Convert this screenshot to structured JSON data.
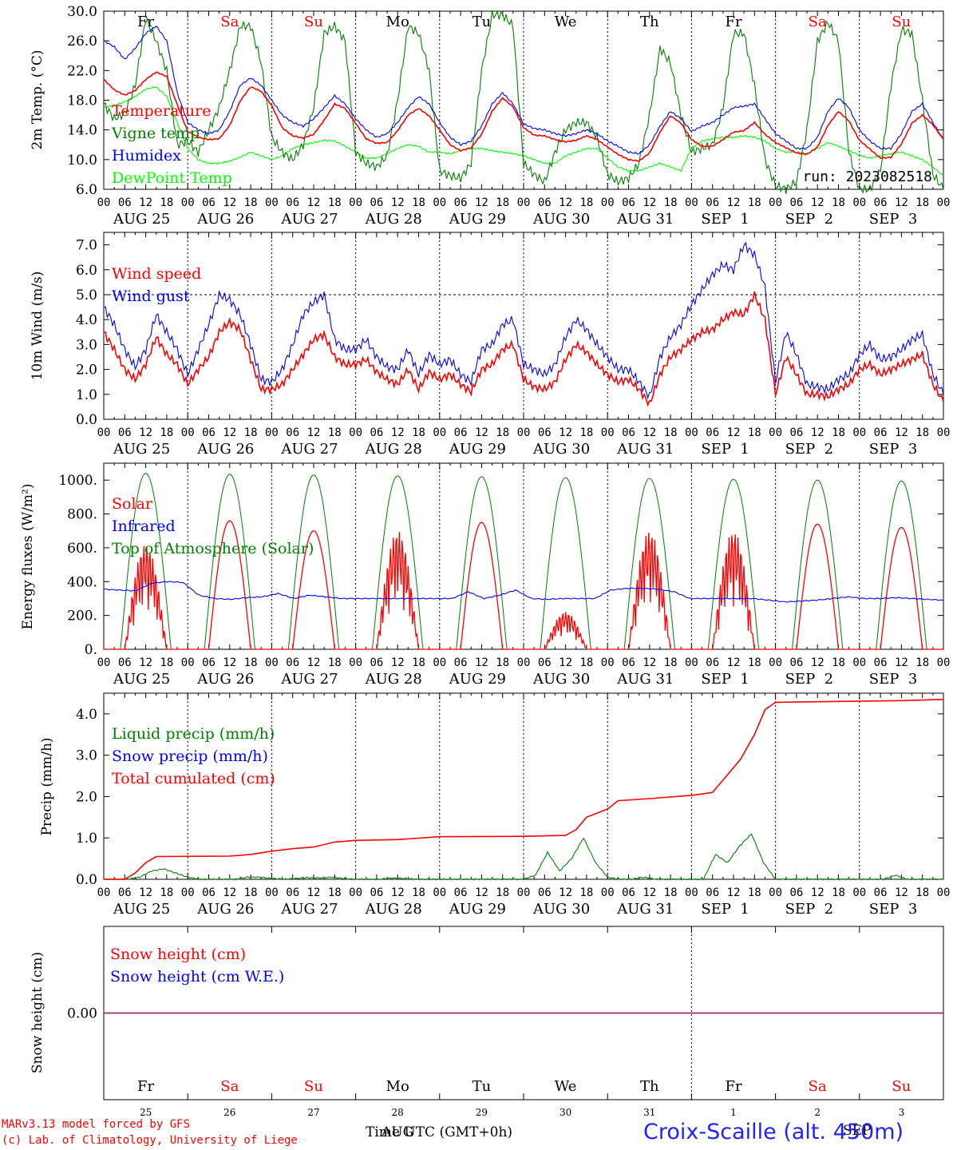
{
  "chart_data": [
    {
      "type": "line",
      "ylabel": "2m Temp. (°C)",
      "ylim": [
        6,
        30
      ],
      "yticks": [
        "6.0",
        "10.0",
        "14.0",
        "18.0",
        "22.0",
        "26.0",
        "30.0"
      ],
      "grid": "vertical-dotted-midnight",
      "legend_placement": "left",
      "annotation": "run: 2023082518",
      "series": [
        {
          "name": "Temperature",
          "color": "#ff0000",
          "values": [
            20.8,
            19.4,
            18.7,
            19.3,
            20.8,
            21.8,
            21.2,
            17.4,
            13.8,
            13.0,
            12.7,
            12.8,
            14.6,
            17.9,
            19.8,
            19.2,
            17.3,
            14.3,
            13.2,
            12.9,
            13.4,
            15.3,
            17.5,
            16.9,
            14.9,
            12.8,
            12.2,
            12.3,
            13.9,
            16.0,
            16.9,
            15.9,
            14.0,
            12.0,
            11.2,
            11.6,
            13.4,
            16.5,
            18.3,
            17.1,
            14.3,
            13.3,
            13.2,
            12.7,
            12.4,
            12.6,
            13.2,
            12.7,
            11.7,
            10.7,
            10.0,
            9.8,
            10.9,
            13.7,
            15.9,
            14.9,
            12.7,
            11.8,
            11.8,
            12.7,
            13.7,
            13.9,
            15.0,
            13.4,
            12.3,
            11.6,
            10.9,
            10.7,
            11.7,
            14.6,
            16.5,
            15.2,
            12.6,
            11.4,
            10.2,
            10.3,
            12.1,
            14.9,
            16.0,
            14.7,
            12.7
          ]
        },
        {
          "name": "Vigne temp",
          "color": "#008000",
          "values": [
            17.5,
            15.5,
            16.2,
            20.0,
            29.0,
            26.0,
            22.0,
            12.0,
            12.5,
            11.0,
            14.0,
            17.0,
            22.0,
            28.0,
            28.0,
            23.0,
            13.0,
            11.0,
            10.0,
            12.0,
            17.0,
            27.0,
            28.0,
            26.0,
            11.0,
            9.5,
            9.0,
            10.5,
            18.0,
            28.0,
            27.0,
            22.0,
            8.5,
            7.8,
            7.5,
            9.5,
            22.0,
            29.5,
            29.5,
            28.0,
            9.5,
            8.0,
            7.0,
            11.0,
            14.0,
            15.0,
            15.0,
            13.0,
            8.0,
            7.0,
            7.5,
            9.5,
            16.0,
            25.0,
            23.0,
            16.0,
            11.0,
            11.5,
            12.0,
            17.0,
            27.0,
            27.0,
            20.0,
            10.0,
            6.5,
            6.0,
            7.0,
            14.0,
            26.0,
            28.5,
            26.0,
            11.0,
            6.0,
            6.0,
            8.5,
            20.0,
            27.5,
            27.0,
            18.0,
            8.0,
            6.0
          ]
        },
        {
          "name": "Humidex",
          "color": "#0000ff",
          "values": [
            26.0,
            25.2,
            23.5,
            25.0,
            27.0,
            28.0,
            26.0,
            19.0,
            15.0,
            14.0,
            13.5,
            14.0,
            16.5,
            20.0,
            21.0,
            20.0,
            18.0,
            16.0,
            15.0,
            14.5,
            15.5,
            17.0,
            18.6,
            17.5,
            15.5,
            14.0,
            13.0,
            13.5,
            15.0,
            17.0,
            18.5,
            17.5,
            15.0,
            13.0,
            12.0,
            12.5,
            14.5,
            17.5,
            19.0,
            17.5,
            14.8,
            14.2,
            14.0,
            13.5,
            13.2,
            13.5,
            14.0,
            13.5,
            12.5,
            11.8,
            11.0,
            10.8,
            12.0,
            14.5,
            16.5,
            15.5,
            13.8,
            14.5,
            15.0,
            16.0,
            17.0,
            17.2,
            17.5,
            15.5,
            13.5,
            12.5,
            11.5,
            11.5,
            13.0,
            16.5,
            18.3,
            17.0,
            14.0,
            12.5,
            11.5,
            11.5,
            13.5,
            16.5,
            17.5,
            15.0,
            12.7
          ]
        },
        {
          "name": "DewPoint Temp",
          "color": "#00ff00",
          "values": [
            17.0,
            17.3,
            17.8,
            18.5,
            19.5,
            19.8,
            18.5,
            15.0,
            11.5,
            10.0,
            9.5,
            9.5,
            9.8,
            10.3,
            11.0,
            10.5,
            10.0,
            10.5,
            11.5,
            12.0,
            12.3,
            12.6,
            12.5,
            11.8,
            11.0,
            10.2,
            10.2,
            10.8,
            11.5,
            12.0,
            11.8,
            11.0,
            11.0,
            10.8,
            11.2,
            11.5,
            11.5,
            11.2,
            11.0,
            10.8,
            10.5,
            10.0,
            9.5,
            9.5,
            10.5,
            11.0,
            11.5,
            11.5,
            10.2,
            9.0,
            8.5,
            8.5,
            9.0,
            9.5,
            9.0,
            8.5,
            11.5,
            12.5,
            12.8,
            13.0,
            13.0,
            13.2,
            13.0,
            12.5,
            11.5,
            11.0,
            11.0,
            10.8,
            11.5,
            12.3,
            11.8,
            11.2,
            10.6,
            10.2,
            10.5,
            10.8,
            11.0,
            10.5,
            10.0,
            9.0,
            7.8
          ]
        }
      ]
    },
    {
      "type": "line",
      "ylabel": "10m Wind (m/s)",
      "ylim": [
        0,
        7.5
      ],
      "yticks": [
        "0.0",
        "1.0",
        "2.0",
        "3.0",
        "4.0",
        "5.0",
        "6.0",
        "7.0"
      ],
      "reference_line": 5.0,
      "legend_placement": "left",
      "series": [
        {
          "name": "Wind speed",
          "color": "#ff0000",
          "values": [
            3.5,
            2.8,
            2.0,
            1.6,
            2.2,
            3.3,
            2.6,
            2.2,
            1.4,
            2.0,
            2.5,
            3.5,
            3.9,
            3.6,
            2.4,
            1.2,
            1.2,
            1.4,
            2.0,
            2.6,
            3.2,
            3.4,
            2.5,
            2.2,
            2.2,
            2.4,
            1.9,
            1.6,
            1.4,
            2.0,
            1.2,
            1.9,
            1.6,
            1.8,
            1.4,
            1.1,
            2.0,
            2.2,
            2.8,
            3.0,
            1.6,
            1.3,
            1.2,
            1.5,
            2.4,
            3.0,
            2.7,
            2.2,
            1.8,
            1.5,
            1.6,
            1.2,
            0.6,
            1.8,
            2.5,
            2.8,
            3.2,
            3.5,
            3.6,
            4.0,
            4.3,
            4.2,
            5.0,
            4.0,
            1.0,
            2.5,
            1.8,
            1.0,
            1.0,
            0.9,
            1.2,
            1.4,
            2.0,
            2.2,
            1.8,
            2.0,
            2.2,
            2.4,
            2.6,
            1.4,
            0.7
          ]
        },
        {
          "name": "Wind gust",
          "color": "#0000ff",
          "values": [
            4.5,
            3.8,
            2.8,
            2.1,
            2.8,
            4.2,
            3.5,
            2.8,
            1.8,
            2.8,
            3.8,
            5.0,
            4.8,
            4.2,
            3.0,
            1.6,
            1.5,
            2.0,
            3.0,
            4.2,
            4.7,
            5.0,
            3.2,
            2.8,
            2.8,
            3.2,
            2.5,
            2.1,
            2.0,
            2.8,
            1.8,
            2.6,
            2.2,
            2.4,
            1.8,
            1.5,
            2.8,
            3.0,
            3.8,
            4.0,
            2.2,
            2.0,
            1.8,
            2.2,
            3.3,
            4.0,
            3.6,
            3.0,
            2.5,
            2.0,
            2.0,
            1.5,
            0.9,
            2.5,
            3.3,
            3.8,
            4.6,
            5.2,
            5.8,
            6.2,
            6.0,
            7.0,
            6.6,
            5.3,
            1.5,
            3.5,
            2.6,
            1.4,
            1.3,
            1.2,
            1.6,
            1.8,
            2.6,
            3.0,
            2.4,
            2.5,
            2.8,
            3.2,
            3.4,
            1.8,
            1.0
          ]
        }
      ]
    },
    {
      "type": "line",
      "ylabel": "Energy fluxes (W/m²)",
      "ylim": [
        0,
        1100
      ],
      "yticks": [
        "0.",
        "200.",
        "400.",
        "600.",
        "800.",
        "1000."
      ],
      "legend_placement": "left",
      "series": [
        {
          "name": "Solar",
          "color": "#ff0000",
          "peaks": [
            620,
            760,
            700,
            700,
            750,
            220,
            700,
            700,
            740,
            720
          ],
          "note": "daily cycle, peak near 12 UTC"
        },
        {
          "name": "Infrared",
          "color": "#0000ff",
          "values": [
            355,
            350,
            345,
            390,
            400,
            395,
            320,
            300,
            295,
            305,
            310,
            330,
            300,
            320,
            310,
            300,
            300,
            300,
            300,
            300,
            300,
            300,
            300,
            340,
            300,
            320,
            350,
            300,
            295,
            300,
            300,
            300,
            350,
            360,
            360,
            355,
            340,
            300,
            300,
            300,
            300,
            300,
            290,
            280,
            285,
            290,
            300,
            310,
            300,
            300,
            305,
            300,
            295,
            290
          ]
        },
        {
          "name": "Top of Atmosphere (Solar)",
          "color": "#008000",
          "peaks": [
            1040,
            1035,
            1030,
            1025,
            1020,
            1015,
            1010,
            1005,
            1000,
            995
          ],
          "note": "daily cycle 05-19 UTC"
        }
      ]
    },
    {
      "type": "line",
      "ylabel": "Precip (mm/h)",
      "ylim": [
        0,
        4.5
      ],
      "yticks": [
        "0.0",
        "1.0",
        "2.0",
        "3.0",
        "4.0"
      ],
      "legend_placement": "left",
      "series": [
        {
          "name": "Liquid precip (mm/h)",
          "color": "#008000",
          "values": [
            0,
            0,
            0,
            0.05,
            0.2,
            0.25,
            0.15,
            0.05,
            0,
            0,
            0,
            0,
            0.05,
            0.05,
            0.02,
            0,
            0.02,
            0.04,
            0.03,
            0.05,
            0.02,
            0,
            0,
            0,
            0.03,
            0.02,
            0,
            0,
            0,
            0,
            0,
            0,
            0,
            0,
            0,
            0,
            0.1,
            0.65,
            0.2,
            0.5,
            1.0,
            0.4,
            0.05,
            0,
            0,
            0.05,
            0,
            0,
            0,
            0,
            0,
            0.6,
            0.4,
            0.8,
            1.1,
            0.4,
            0,
            0,
            0,
            0,
            0,
            0,
            0,
            0,
            0,
            0,
            0.1,
            0,
            0,
            0,
            0
          ]
        },
        {
          "name": "Snow precip (mm/h)",
          "color": "#0000ff",
          "values": []
        },
        {
          "name": "Total cumulated (cm)",
          "color": "#ff0000",
          "values": [
            [
              0,
              0
            ],
            [
              6,
              0
            ],
            [
              9,
              0.15
            ],
            [
              12,
              0.4
            ],
            [
              15,
              0.55
            ],
            [
              36,
              0.56
            ],
            [
              42,
              0.6
            ],
            [
              48,
              0.68
            ],
            [
              54,
              0.74
            ],
            [
              60,
              0.78
            ],
            [
              66,
              0.9
            ],
            [
              72,
              0.94
            ],
            [
              84,
              0.96
            ],
            [
              96,
              1.03
            ],
            [
              120,
              1.04
            ],
            [
              132,
              1.06
            ],
            [
              135,
              1.2
            ],
            [
              138,
              1.5
            ],
            [
              144,
              1.7
            ],
            [
              147,
              1.9
            ],
            [
              156,
              1.95
            ],
            [
              168,
              2.03
            ],
            [
              174,
              2.1
            ],
            [
              178,
              2.5
            ],
            [
              182,
              2.9
            ],
            [
              186,
              3.5
            ],
            [
              189,
              4.1
            ],
            [
              192,
              4.28
            ],
            [
              228,
              4.32
            ],
            [
              240,
              4.35
            ]
          ]
        }
      ]
    },
    {
      "type": "line",
      "ylabel": "Snow height (cm)",
      "ytick": "0.00",
      "legend_placement": "left",
      "series": [
        {
          "name": "Snow height (cm)",
          "color": "#ff0000",
          "values": [
            0,
            0
          ]
        },
        {
          "name": "Snow height (cm W.E.)",
          "color": "#0000ff",
          "values": [
            0,
            0
          ]
        }
      ]
    }
  ],
  "days": [
    "Fr",
    "Sa",
    "Su",
    "Mo",
    "Tu",
    "We",
    "Th",
    "Fr",
    "Sa",
    "Su"
  ],
  "day_colors": [
    "#000000",
    "#ff0000",
    "#ff0000",
    "#000000",
    "#000000",
    "#000000",
    "#000000",
    "#000000",
    "#ff0000",
    "#ff0000"
  ],
  "dates": [
    "AUG 25",
    "AUG 26",
    "AUG 27",
    "AUG 28",
    "AUG 29",
    "AUG 30",
    "AUG 31",
    "SEP  1",
    "SEP  2",
    "SEP  3"
  ],
  "day_numbers": [
    "25",
    "26",
    "27",
    "28",
    "29",
    "30",
    "31",
    "1",
    "2",
    "3"
  ],
  "hour_ticks": [
    "00",
    "06",
    "12",
    "18"
  ],
  "footer": {
    "model": "MARv3.13 model forced by GFS",
    "lab": "(c) Lab. of Climatology, University of Liege",
    "time_label": "Time UTC (GMT+0h)",
    "month1": "AUG",
    "month2": "SEP",
    "station": "Croix-Scaille (alt. 450m)"
  }
}
